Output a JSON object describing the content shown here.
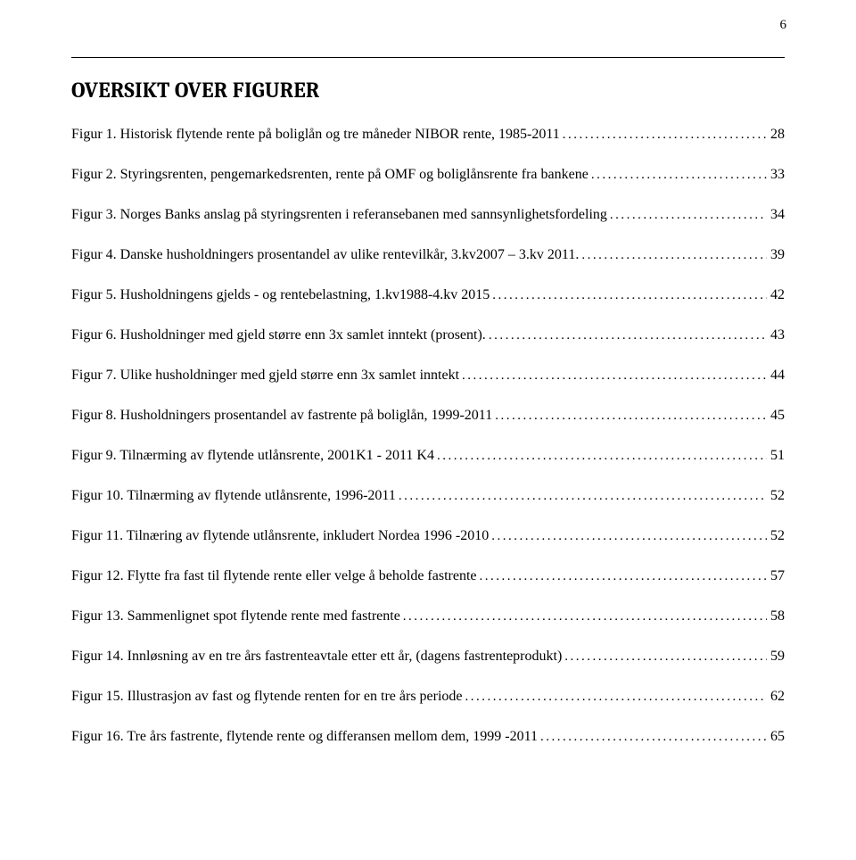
{
  "page_number": "6",
  "title": "OVERSIKT OVER FIGURER",
  "entries": [
    {
      "text": "Figur 1. Historisk flytende rente på boliglån og tre måneder NIBOR rente, 1985-2011",
      "page": "28"
    },
    {
      "text": "Figur 2. Styringsrenten, pengemarkedsrenten, rente på OMF og boliglånsrente fra bankene",
      "page": "33"
    },
    {
      "text": "Figur 3. Norges Banks anslag på styringsrenten i referansebanen med sannsynlighetsfordeling",
      "page": "34"
    },
    {
      "text": "Figur 4. Danske husholdningers prosentandel av ulike rentevilkår, 3.kv2007 – 3.kv 2011.",
      "page": "39"
    },
    {
      "text": "Figur 5. Husholdningens gjelds - og rentebelastning, 1.kv1988-4.kv 2015",
      "page": "42"
    },
    {
      "text": "Figur 6. Husholdninger med gjeld større enn 3x samlet inntekt (prosent).",
      "page": "43"
    },
    {
      "text": "Figur 7. Ulike husholdninger med gjeld større enn 3x samlet inntekt",
      "page": "44"
    },
    {
      "text": "Figur 8. Husholdningers prosentandel av fastrente på boliglån, 1999-2011",
      "page": "45"
    },
    {
      "text": "Figur 9. Tilnærming av flytende utlånsrente, 2001K1 - 2011 K4",
      "page": "51"
    },
    {
      "text": "Figur 10. Tilnærming av flytende utlånsrente, 1996-2011",
      "page": "52"
    },
    {
      "text": "Figur 11. Tilnæring av flytende utlånsrente, inkludert Nordea 1996 -2010",
      "page": "52"
    },
    {
      "text": "Figur 12. Flytte fra fast til flytende rente eller velge å beholde fastrente",
      "page": "57"
    },
    {
      "text": "Figur 13. Sammenlignet spot flytende rente med fastrente",
      "page": "58"
    },
    {
      "text": "Figur 14. Innløsning av en tre års fastrenteavtale etter ett år, (dagens fastrenteprodukt)",
      "page": "59"
    },
    {
      "text": "Figur 15. Illustrasjon av fast og flytende renten for en tre års periode",
      "page": "62"
    },
    {
      "text": "Figur 16. Tre års fastrente, flytende rente og differansen mellom dem, 1999 -2011",
      "page": "65"
    }
  ]
}
